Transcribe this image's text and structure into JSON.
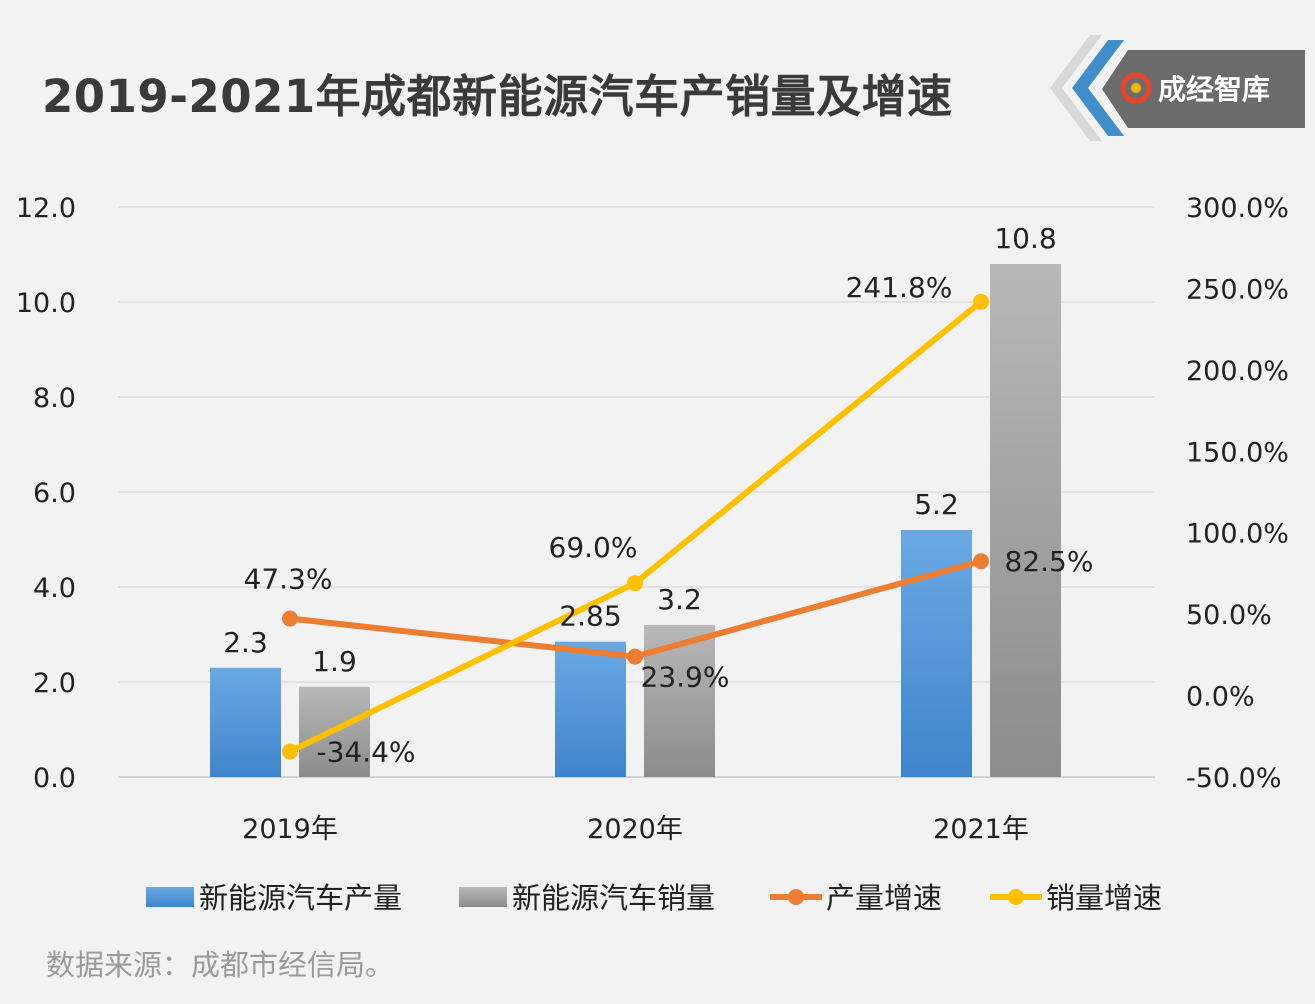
{
  "title": "2019-2021年成都新能源汽车产销量及增速",
  "logo": {
    "text": "成经智库"
  },
  "source": "数据来源：成都市经信局。",
  "colors": {
    "production_bar": "#4a8fd4",
    "sales_bar": "#a0a0a0",
    "production_growth": "#ed7d31",
    "sales_growth": "#ffc000"
  },
  "chart_data": {
    "type": "bar",
    "categories": [
      "2019年",
      "2020年",
      "2021年"
    ],
    "y_left": {
      "ylim": [
        0,
        12
      ],
      "ticks": [
        "0.0",
        "2.0",
        "4.0",
        "6.0",
        "8.0",
        "10.0",
        "12.0"
      ]
    },
    "y_right": {
      "ylim": [
        -50,
        300
      ],
      "ticks": [
        "-50.0%",
        "0.0%",
        "50.0%",
        "100.0%",
        "150.0%",
        "200.0%",
        "250.0%",
        "300.0%"
      ]
    },
    "grid": true,
    "legend_position": "bottom",
    "series": [
      {
        "name": "新能源汽车产量",
        "type": "bar",
        "axis": "left",
        "values": [
          2.3,
          2.85,
          5.2
        ],
        "labels": [
          "2.3",
          "2.85",
          "5.2"
        ]
      },
      {
        "name": "新能源汽车销量",
        "type": "bar",
        "axis": "left",
        "values": [
          1.9,
          3.2,
          10.8
        ],
        "labels": [
          "1.9",
          "3.2",
          "10.8"
        ]
      },
      {
        "name": "产量增速",
        "type": "line",
        "axis": "right",
        "values": [
          47.3,
          23.9,
          82.5
        ],
        "labels": [
          "47.3%",
          "23.9%",
          "82.5%"
        ]
      },
      {
        "name": "销量增速",
        "type": "line",
        "axis": "right",
        "values": [
          -34.4,
          69.0,
          241.8
        ],
        "labels": [
          "-34.4%",
          "69.0%",
          "241.8%"
        ]
      }
    ]
  }
}
